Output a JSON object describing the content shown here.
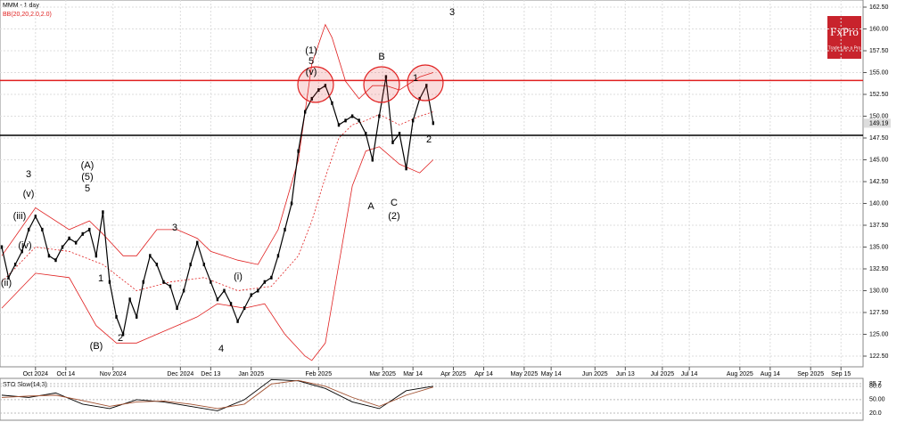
{
  "chart_data": {
    "type": "line",
    "title": "MMM - 1 day",
    "subtitle": "BB(20,20,2.0,2.0)",
    "logo": "FxPro",
    "logo_tagline": "Trade Like a Pro",
    "x": [
      0,
      2,
      4,
      6,
      8,
      10,
      12,
      14,
      16,
      18,
      20,
      22,
      24,
      26,
      28,
      30,
      32,
      34,
      36,
      38,
      40,
      42,
      44,
      46,
      48,
      50,
      52,
      54,
      56,
      58,
      60,
      62,
      64,
      66,
      68,
      70,
      72,
      74,
      76,
      78,
      80,
      82,
      84,
      86,
      88,
      90,
      92,
      94,
      96,
      98,
      100,
      102,
      104,
      106,
      108,
      110,
      112,
      114,
      116,
      118,
      120,
      122,
      124,
      126,
      128
    ],
    "series": [
      {
        "name": "MMM",
        "color": "#000000",
        "values": [
          135,
          131.5,
          133,
          134.5,
          137,
          138.5,
          137,
          134,
          133.5,
          135,
          136,
          135.5,
          136.5,
          137,
          134,
          139,
          131,
          127,
          125,
          129,
          127,
          131,
          134,
          133,
          131,
          130.5,
          128,
          130,
          133,
          135.5,
          133,
          131,
          129,
          130,
          128.5,
          126.5,
          128,
          129.5,
          130,
          131,
          131.5,
          134,
          137,
          140,
          146,
          150.5,
          152,
          153,
          153.5,
          151.5,
          149,
          149.5,
          150,
          149.5,
          148,
          145,
          150,
          154.5,
          147,
          148,
          144,
          149.5,
          152,
          153.5,
          149.2
        ]
      }
    ],
    "bands": [
      {
        "name": "upper",
        "color": "#e02020",
        "x": [
          0,
          10,
          20,
          26,
          30,
          36,
          40,
          46,
          52,
          58,
          62,
          70,
          76,
          82,
          88,
          92,
          96,
          98,
          102,
          106,
          110,
          114,
          118,
          124,
          128
        ],
        "values": [
          134,
          139.5,
          137,
          138,
          136.5,
          134,
          134,
          137,
          137,
          136,
          134.5,
          133.5,
          133,
          137,
          145,
          156,
          160.5,
          159,
          154,
          152,
          153.5,
          153.5,
          153,
          154.5,
          155
        ]
      },
      {
        "name": "middle",
        "color": "#e02020",
        "x": [
          0,
          10,
          20,
          30,
          40,
          50,
          60,
          70,
          80,
          88,
          92,
          96,
          100,
          104,
          108,
          112,
          118,
          124,
          128
        ],
        "values": [
          131,
          135,
          134.5,
          133,
          130,
          131,
          131.5,
          130,
          130.5,
          134,
          138,
          143,
          147.5,
          149,
          149.5,
          150.2,
          149,
          150,
          150.5
        ]
      },
      {
        "name": "lower",
        "color": "#e02020",
        "x": [
          0,
          10,
          20,
          28,
          34,
          40,
          46,
          52,
          58,
          64,
          72,
          78,
          84,
          90,
          92,
          96,
          100,
          104,
          108,
          112,
          118,
          124,
          128
        ],
        "values": [
          128,
          132,
          131.5,
          126,
          124,
          124,
          125,
          126,
          127,
          128.5,
          128,
          128.5,
          125,
          122.5,
          122,
          124,
          133,
          142,
          146,
          146.5,
          144.5,
          143.5,
          145
        ]
      }
    ],
    "levels": [
      {
        "value": 154.1,
        "color": "#e02020"
      },
      {
        "value": 147.8,
        "color": "#000000"
      }
    ],
    "last_price": {
      "value": 149.19,
      "label": "149.19"
    },
    "ylim": [
      122.5,
      162.5
    ],
    "yticks": [
      {
        "value": 122.5,
        "label": "122.50"
      },
      {
        "value": 125,
        "label": "125.00"
      },
      {
        "value": 127.5,
        "label": "127.50"
      },
      {
        "value": 130,
        "label": "130.00"
      },
      {
        "value": 132.5,
        "label": "132.50"
      },
      {
        "value": 135,
        "label": "135.00"
      },
      {
        "value": 137.5,
        "label": "137.50"
      },
      {
        "value": 140,
        "label": "140.00"
      },
      {
        "value": 142.5,
        "label": "142.50"
      },
      {
        "value": 145,
        "label": "145.00"
      },
      {
        "value": 147.5,
        "label": "147.50"
      },
      {
        "value": 150,
        "label": "150.00"
      },
      {
        "value": 152.5,
        "label": "152.50"
      },
      {
        "value": 155,
        "label": "155.00"
      },
      {
        "value": 157.5,
        "label": "157.50"
      },
      {
        "value": 160,
        "label": "160.00"
      },
      {
        "value": 162.5,
        "label": "162.50"
      }
    ],
    "xticks": [
      {
        "value": 10,
        "label": "Oct 2024"
      },
      {
        "value": 19,
        "label": "Oct 14"
      },
      {
        "value": 33,
        "label": "Nov 2024"
      },
      {
        "value": 53,
        "label": "Dec 2024"
      },
      {
        "value": 62,
        "label": "Dec 13"
      },
      {
        "value": 74,
        "label": "Jan 2025"
      },
      {
        "value": 94,
        "label": "Feb 2025"
      },
      {
        "value": 113,
        "label": "Mar 2025"
      },
      {
        "value": 122,
        "label": "Mar 14"
      },
      {
        "value": 134,
        "label": "Apr 2025"
      },
      {
        "value": 143,
        "label": "Apr 14"
      },
      {
        "value": 155,
        "label": "May 2025"
      },
      {
        "value": 163,
        "label": "May 14"
      },
      {
        "value": 176,
        "label": "Jun 2025"
      },
      {
        "value": 185,
        "label": "Jun 13"
      },
      {
        "value": 196,
        "label": "Jul 2025"
      },
      {
        "value": 204,
        "label": "Jul 14"
      },
      {
        "value": 219,
        "label": "Aug 2025"
      },
      {
        "value": 228,
        "label": "Aug 14"
      },
      {
        "value": 240,
        "label": "Sep 2025"
      },
      {
        "value": 249,
        "label": "Sep 15"
      }
    ],
    "grid": true,
    "annotations": [
      "(1)",
      "5",
      "(v)",
      "B",
      "A",
      "C",
      "(2)",
      "3",
      "1",
      "2",
      "3",
      "(v)",
      "(A)",
      "(5)",
      "5",
      "1",
      "(B)",
      "2",
      "3",
      "4",
      "(iii)",
      "(iv)",
      "(ii)",
      "(i)"
    ],
    "oscillator": {
      "title": "STO Slow(14,3)",
      "x": [
        0,
        8,
        16,
        24,
        32,
        40,
        48,
        56,
        64,
        72,
        80,
        88,
        96,
        104,
        112,
        120,
        128
      ],
      "series": [
        {
          "name": "K",
          "color": "#000000",
          "values": [
            60,
            55,
            65,
            40,
            30,
            50,
            45,
            35,
            25,
            50,
            95,
            92,
            75,
            45,
            30,
            70,
            80
          ]
        },
        {
          "name": "D",
          "color": "#a05030",
          "values": [
            55,
            58,
            60,
            48,
            35,
            45,
            47,
            40,
            30,
            40,
            85,
            93,
            80,
            55,
            35,
            60,
            78
          ]
        }
      ],
      "ylim": [
        0,
        100
      ],
      "yticks": [
        {
          "value": 85.7,
          "label": "85.7"
        },
        {
          "value": 80,
          "label": "80.0"
        },
        {
          "value": 50,
          "label": "50.00"
        },
        {
          "value": 20,
          "label": "20.0"
        }
      ]
    }
  }
}
